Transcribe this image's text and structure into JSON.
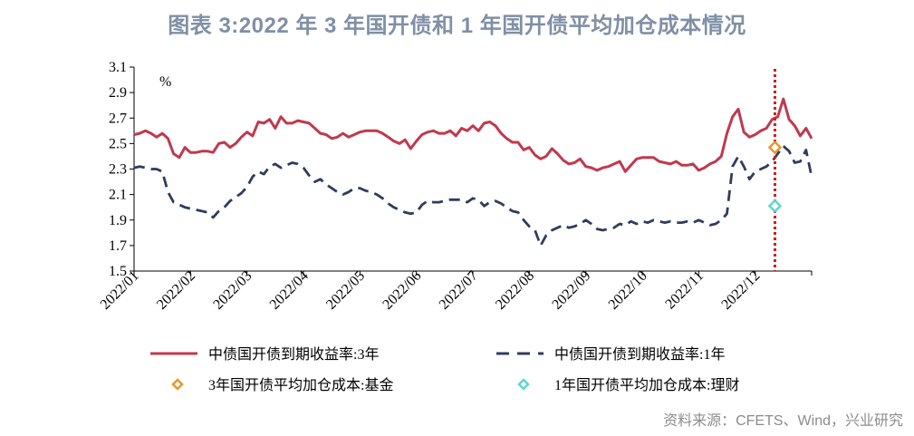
{
  "title": "图表 3:2022 年 3 年国开债和 1 年国开债平均加仓成本情况",
  "source": "资料来源：CFETS、Wind，兴业研究",
  "colors": {
    "red": "#c0394d",
    "navy": "#2f3d5c",
    "orange": "#e8962e",
    "cyan": "#5fd6d2",
    "vline": "#cc1f1f",
    "title": "#7f8fa6"
  },
  "chart_data": {
    "type": "line",
    "unit_label": "%",
    "ylim": [
      1.5,
      3.1
    ],
    "yticks": [
      "3.1",
      "2.9",
      "2.7",
      "2.5",
      "2.3",
      "2.1",
      "1.9",
      "1.7",
      "1.5"
    ],
    "ytick_values": [
      3.1,
      2.9,
      2.7,
      2.5,
      2.3,
      2.1,
      1.9,
      1.7,
      1.5
    ],
    "xlim": [
      0,
      12
    ],
    "categories": [
      "2022/01",
      "2022/02",
      "2022/03",
      "2022/04",
      "2022/05",
      "2022/06",
      "2022/07",
      "2022/08",
      "2022/09",
      "2022/10",
      "2022/11",
      "2022/12"
    ],
    "series": [
      {
        "name": "中债国开债到期收益率:3年",
        "style": "solid",
        "x": [
          0,
          0.1,
          0.2,
          0.3,
          0.4,
          0.5,
          0.6,
          0.7,
          0.8,
          0.9,
          1.0,
          1.1,
          1.2,
          1.3,
          1.4,
          1.5,
          1.6,
          1.7,
          1.8,
          1.9,
          2.0,
          2.1,
          2.2,
          2.3,
          2.4,
          2.5,
          2.6,
          2.7,
          2.8,
          2.9,
          3.0,
          3.1,
          3.2,
          3.3,
          3.4,
          3.5,
          3.6,
          3.7,
          3.8,
          3.9,
          4.0,
          4.1,
          4.2,
          4.3,
          4.4,
          4.5,
          4.6,
          4.7,
          4.8,
          4.9,
          5.0,
          5.1,
          5.2,
          5.3,
          5.4,
          5.5,
          5.6,
          5.7,
          5.8,
          5.9,
          6.0,
          6.1,
          6.2,
          6.3,
          6.4,
          6.5,
          6.6,
          6.7,
          6.8,
          6.9,
          7.0,
          7.1,
          7.2,
          7.3,
          7.4,
          7.5,
          7.6,
          7.7,
          7.8,
          7.9,
          8.0,
          8.1,
          8.2,
          8.3,
          8.4,
          8.5,
          8.6,
          8.7,
          8.8,
          8.9,
          9.0,
          9.1,
          9.2,
          9.3,
          9.4,
          9.5,
          9.6,
          9.7,
          9.8,
          9.9,
          10.0,
          10.1,
          10.2,
          10.3,
          10.4,
          10.5,
          10.6,
          10.7,
          10.8,
          10.9,
          11.0,
          11.1,
          11.2,
          11.3,
          11.4,
          11.5,
          11.6,
          11.7,
          11.8,
          11.9,
          12.0
        ],
        "values": [
          2.57,
          2.58,
          2.6,
          2.58,
          2.55,
          2.58,
          2.54,
          2.42,
          2.39,
          2.47,
          2.43,
          2.43,
          2.44,
          2.44,
          2.43,
          2.5,
          2.51,
          2.47,
          2.5,
          2.55,
          2.59,
          2.56,
          2.67,
          2.66,
          2.69,
          2.62,
          2.71,
          2.66,
          2.66,
          2.68,
          2.67,
          2.66,
          2.62,
          2.58,
          2.57,
          2.54,
          2.55,
          2.58,
          2.55,
          2.57,
          2.59,
          2.6,
          2.6,
          2.6,
          2.58,
          2.55,
          2.52,
          2.5,
          2.53,
          2.46,
          2.52,
          2.57,
          2.59,
          2.6,
          2.58,
          2.58,
          2.6,
          2.56,
          2.62,
          2.6,
          2.64,
          2.6,
          2.66,
          2.67,
          2.64,
          2.58,
          2.54,
          2.51,
          2.51,
          2.45,
          2.47,
          2.41,
          2.38,
          2.4,
          2.46,
          2.42,
          2.37,
          2.34,
          2.35,
          2.38,
          2.32,
          2.31,
          2.29,
          2.31,
          2.32,
          2.34,
          2.36,
          2.28,
          2.33,
          2.38,
          2.39,
          2.39,
          2.39,
          2.36,
          2.35,
          2.34,
          2.36,
          2.33,
          2.33,
          2.34,
          2.29,
          2.31,
          2.34,
          2.36,
          2.4,
          2.58,
          2.71,
          2.77,
          2.59,
          2.55,
          2.57,
          2.6,
          2.62,
          2.69,
          2.71,
          2.85,
          2.69,
          2.64,
          2.56,
          2.62,
          2.54
        ]
      },
      {
        "name": "中债国开债到期收益率:1年",
        "style": "dashed",
        "x": [
          0,
          0.1,
          0.2,
          0.3,
          0.4,
          0.5,
          0.6,
          0.7,
          0.8,
          0.9,
          1.0,
          1.1,
          1.2,
          1.3,
          1.4,
          1.5,
          1.6,
          1.7,
          1.8,
          1.9,
          2.0,
          2.1,
          2.2,
          2.3,
          2.4,
          2.5,
          2.6,
          2.7,
          2.8,
          2.9,
          3.0,
          3.1,
          3.2,
          3.3,
          3.4,
          3.5,
          3.6,
          3.7,
          3.8,
          3.9,
          4.0,
          4.1,
          4.2,
          4.3,
          4.4,
          4.5,
          4.6,
          4.7,
          4.8,
          4.9,
          5.0,
          5.1,
          5.2,
          5.3,
          5.4,
          5.5,
          5.6,
          5.7,
          5.8,
          5.9,
          6.0,
          6.1,
          6.2,
          6.3,
          6.4,
          6.5,
          6.6,
          6.7,
          6.8,
          6.9,
          7.0,
          7.1,
          7.2,
          7.3,
          7.4,
          7.5,
          7.6,
          7.7,
          7.8,
          7.9,
          8.0,
          8.1,
          8.2,
          8.3,
          8.4,
          8.5,
          8.6,
          8.7,
          8.8,
          8.9,
          9.0,
          9.1,
          9.2,
          9.3,
          9.4,
          9.5,
          9.6,
          9.7,
          9.8,
          9.9,
          10.0,
          10.1,
          10.2,
          10.3,
          10.4,
          10.5,
          10.6,
          10.7,
          10.8,
          10.9,
          11.0,
          11.1,
          11.2,
          11.3,
          11.4,
          11.5,
          11.6,
          11.7,
          11.8,
          11.9,
          12.0
        ],
        "values": [
          2.31,
          2.32,
          2.31,
          2.3,
          2.3,
          2.28,
          2.12,
          2.04,
          2.02,
          2.0,
          1.99,
          1.98,
          1.97,
          1.96,
          1.92,
          1.97,
          2.0,
          2.05,
          2.08,
          2.11,
          2.16,
          2.24,
          2.28,
          2.26,
          2.32,
          2.34,
          2.31,
          2.33,
          2.35,
          2.34,
          2.31,
          2.25,
          2.2,
          2.22,
          2.18,
          2.15,
          2.12,
          2.1,
          2.12,
          2.15,
          2.15,
          2.13,
          2.12,
          2.1,
          2.07,
          2.03,
          2.0,
          1.98,
          1.96,
          1.95,
          1.96,
          2.02,
          2.05,
          2.04,
          2.04,
          2.05,
          2.06,
          2.06,
          2.06,
          2.04,
          2.07,
          2.06,
          2.01,
          2.04,
          2.05,
          2.03,
          2.0,
          1.97,
          1.96,
          1.9,
          1.85,
          1.82,
          1.7,
          1.78,
          1.82,
          1.84,
          1.86,
          1.84,
          1.85,
          1.87,
          1.9,
          1.87,
          1.83,
          1.82,
          1.83,
          1.84,
          1.87,
          1.86,
          1.89,
          1.87,
          1.89,
          1.88,
          1.9,
          1.89,
          1.88,
          1.89,
          1.88,
          1.88,
          1.89,
          1.88,
          1.9,
          1.88,
          1.86,
          1.87,
          1.9,
          1.95,
          2.32,
          2.4,
          2.32,
          2.22,
          2.28,
          2.3,
          2.32,
          2.36,
          2.42,
          2.48,
          2.44,
          2.35,
          2.36,
          2.45,
          2.24
        ]
      }
    ],
    "markers": [
      {
        "name": "3年国开债平均加仓成本:基金",
        "x": 11.35,
        "value": 2.47,
        "shape": "diamond"
      },
      {
        "name": "1年国开债平均加仓成本:理财",
        "x": 11.35,
        "value": 2.01,
        "shape": "diamond"
      }
    ],
    "vertical_line_x": 11.35
  }
}
